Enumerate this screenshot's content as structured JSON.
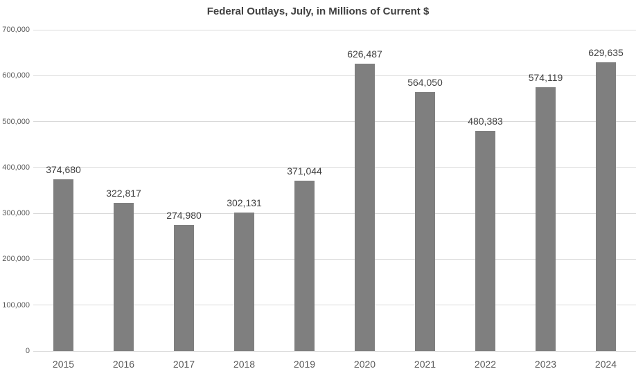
{
  "chart_data": {
    "type": "bar",
    "title": "Federal Outlays, July, in Millions of Current $",
    "categories": [
      "2015",
      "2016",
      "2017",
      "2018",
      "2019",
      "2020",
      "2021",
      "2022",
      "2023",
      "2024"
    ],
    "values": [
      374680,
      322817,
      274980,
      302131,
      371044,
      626487,
      564050,
      480383,
      574119,
      629635
    ],
    "value_labels": [
      "374,680",
      "322,817",
      "274,980",
      "302,131",
      "371,044",
      "626,487",
      "564,050",
      "480,383",
      "574,119",
      "629,635"
    ],
    "xlabel": "",
    "ylabel": "",
    "ylim": [
      0,
      700000
    ],
    "ytick_interval": 100000,
    "ytick_labels": [
      "0",
      "100,000",
      "200,000",
      "300,000",
      "400,000",
      "500,000",
      "600,000",
      "700,000"
    ],
    "grid": "horizontal",
    "legend": "none",
    "bar_color": "#7f7f7f",
    "gridline_color": "#d9d9d9",
    "title_color": "#404040",
    "label_color": "#404040",
    "tick_color": "#595959",
    "background_color": "#ffffff"
  }
}
